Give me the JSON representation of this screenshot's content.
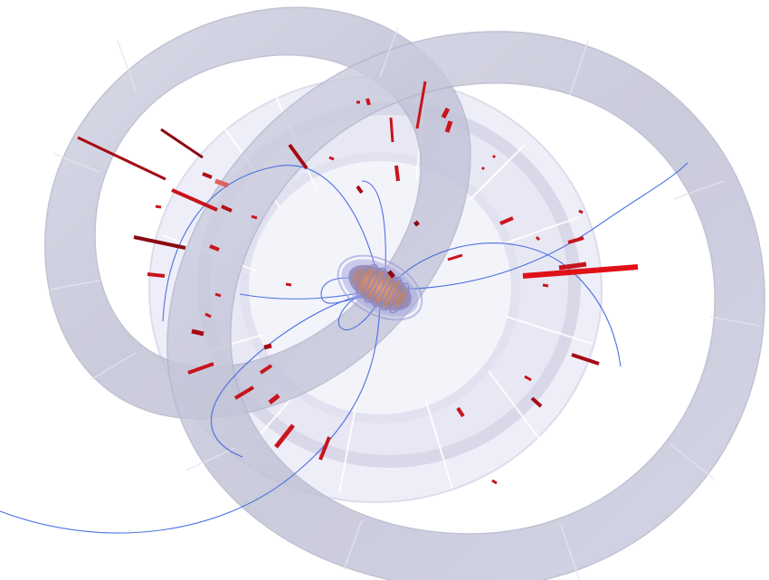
{
  "scene": {
    "kind": "particle-collision-event-display",
    "background_color": "#ffffff",
    "detector_color": "#c8c9dc",
    "detector_inner_color": "#e6e6f5",
    "track_color": "#2f5fe0",
    "hit_color": "#c4101a",
    "core_color": "#c9866e",
    "visible_text": []
  }
}
